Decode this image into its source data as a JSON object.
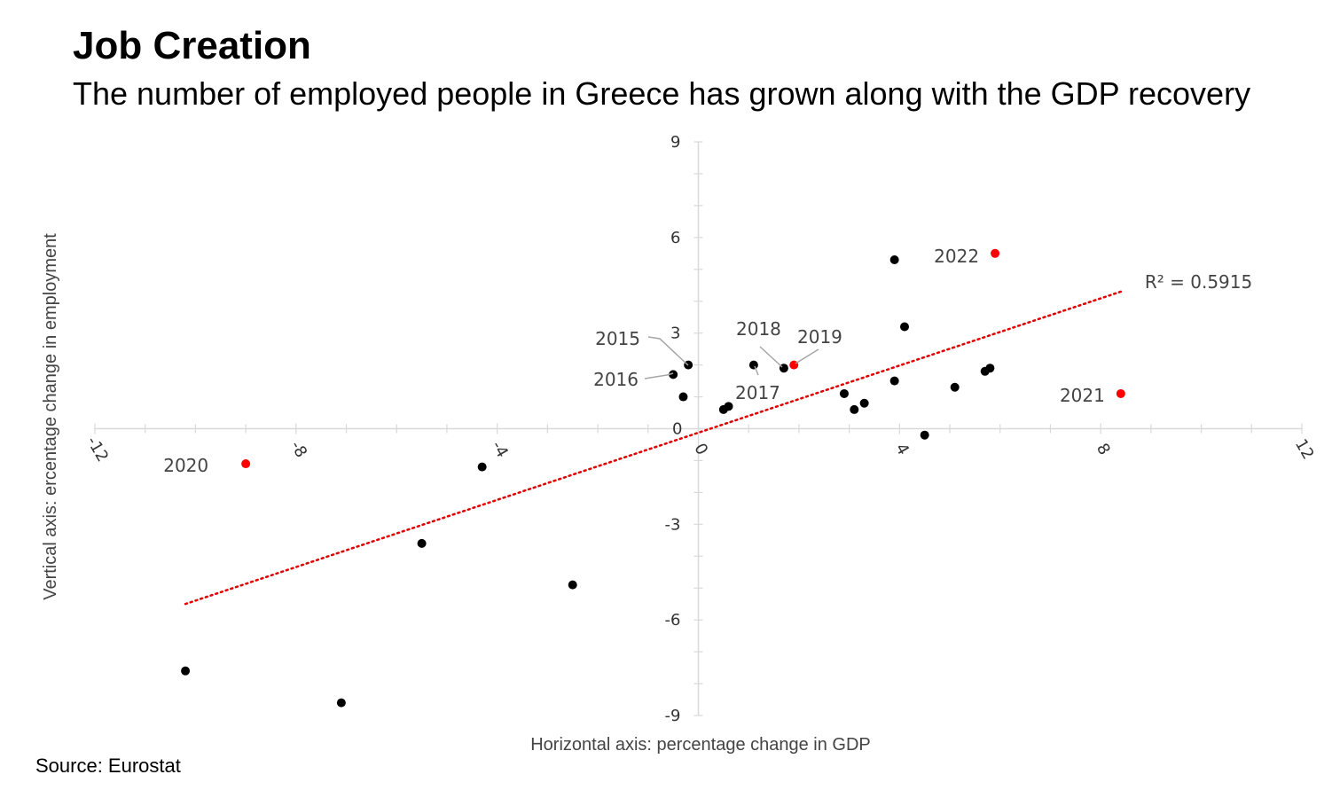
{
  "title": "Job Creation",
  "subtitle": "The number of employed people in Greece has grown along with the GDP recovery",
  "source": "Source: Eurostat",
  "chart_data": {
    "type": "scatter",
    "xlabel": "Horizontal axis: percentage change in GDP",
    "ylabel": "Vertical axis: ercentage change in employment",
    "xlim": [
      -12,
      12
    ],
    "ylim": [
      -9,
      9
    ],
    "x_ticks": [
      -12,
      -8,
      -4,
      0,
      4,
      8,
      12
    ],
    "y_ticks": [
      9,
      6,
      3,
      0,
      -3,
      -6,
      -9
    ],
    "colors": {
      "point": "#000000",
      "highlight": "#ff0000",
      "trend": "#e00000",
      "axis": "#d9d9d9"
    },
    "points": [
      {
        "x": -10.2,
        "y": -7.6,
        "color": "#000000"
      },
      {
        "x": -7.1,
        "y": -8.6,
        "color": "#000000"
      },
      {
        "x": -5.5,
        "y": -3.6,
        "color": "#000000"
      },
      {
        "x": -4.3,
        "y": -1.2,
        "color": "#000000"
      },
      {
        "x": -2.5,
        "y": -4.9,
        "color": "#000000"
      },
      {
        "x": -9.0,
        "y": -1.1,
        "color": "#ff0000",
        "label": "2020"
      },
      {
        "x": -0.5,
        "y": 1.7,
        "color": "#000000",
        "label": "2016"
      },
      {
        "x": -0.2,
        "y": 2.0,
        "color": "#000000",
        "label": "2015"
      },
      {
        "x": -0.3,
        "y": 1.0,
        "color": "#000000"
      },
      {
        "x": 0.5,
        "y": 0.6,
        "color": "#000000"
      },
      {
        "x": 0.6,
        "y": 0.7,
        "color": "#000000"
      },
      {
        "x": 1.1,
        "y": 2.0,
        "color": "#000000",
        "label": "2017"
      },
      {
        "x": 1.7,
        "y": 1.9,
        "color": "#000000",
        "label": "2018"
      },
      {
        "x": 1.9,
        "y": 2.0,
        "color": "#ff0000",
        "label": "2019"
      },
      {
        "x": 2.9,
        "y": 1.1,
        "color": "#000000"
      },
      {
        "x": 3.1,
        "y": 0.6,
        "color": "#000000"
      },
      {
        "x": 3.3,
        "y": 0.8,
        "color": "#000000"
      },
      {
        "x": 3.9,
        "y": 5.3,
        "color": "#000000"
      },
      {
        "x": 3.9,
        "y": 1.5,
        "color": "#000000"
      },
      {
        "x": 4.1,
        "y": 3.2,
        "color": "#000000"
      },
      {
        "x": 4.5,
        "y": -0.2,
        "color": "#000000"
      },
      {
        "x": 5.1,
        "y": 1.3,
        "color": "#000000"
      },
      {
        "x": 5.7,
        "y": 1.8,
        "color": "#000000"
      },
      {
        "x": 5.8,
        "y": 1.9,
        "color": "#000000"
      },
      {
        "x": 5.9,
        "y": 5.5,
        "color": "#ff0000",
        "label": "2022"
      },
      {
        "x": 8.4,
        "y": 1.1,
        "color": "#ff0000",
        "label": "2021"
      }
    ],
    "trendline": {
      "x": [
        -10.2,
        8.4
      ],
      "y": [
        -5.5,
        4.3
      ],
      "label": "R² = 0.5915"
    },
    "grid": false
  }
}
